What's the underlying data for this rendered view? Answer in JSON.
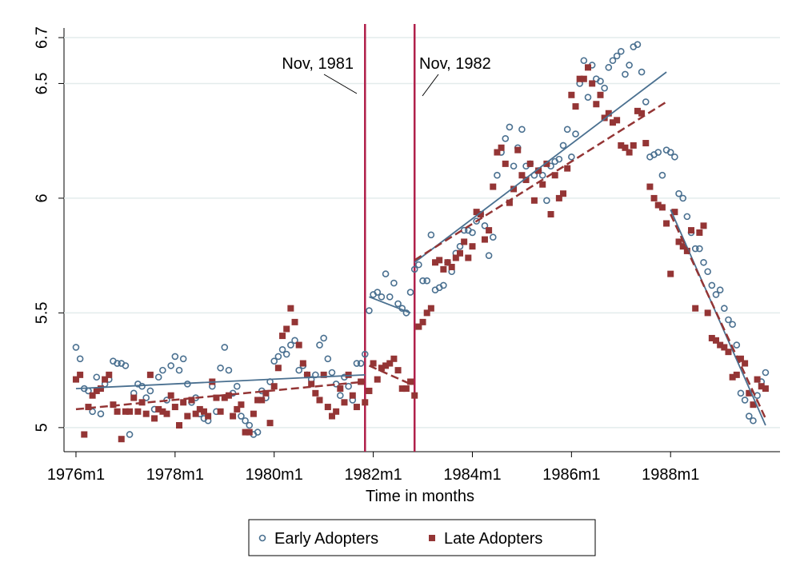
{
  "chart_data": {
    "type": "scatter",
    "xlabel": "Time in months",
    "xlim": [
      189.1,
      362.5
    ],
    "ylim": [
      4.895,
      6.742
    ],
    "xticks": [
      {
        "value": 192,
        "label": "1976m1"
      },
      {
        "value": 216,
        "label": "1978m1"
      },
      {
        "value": 240,
        "label": "1980m1"
      },
      {
        "value": 264,
        "label": "1982m1"
      },
      {
        "value": 288,
        "label": "1984m1"
      },
      {
        "value": 312,
        "label": "1986m1"
      },
      {
        "value": 336,
        "label": "1988m1"
      }
    ],
    "yticks": [
      5,
      5.5,
      6,
      6.5,
      6.7
    ],
    "grid": true,
    "x": [
      192,
      193,
      194,
      195,
      196,
      197,
      198,
      199,
      200,
      201,
      202,
      203,
      204,
      205,
      206,
      207,
      208,
      209,
      210,
      211,
      212,
      213,
      214,
      215,
      216,
      217,
      218,
      219,
      220,
      221,
      222,
      223,
      224,
      225,
      226,
      227,
      228,
      229,
      230,
      231,
      232,
      233,
      234,
      235,
      236,
      237,
      238,
      239,
      240,
      241,
      242,
      243,
      244,
      245,
      246,
      247,
      248,
      249,
      250,
      251,
      252,
      253,
      254,
      255,
      256,
      257,
      258,
      259,
      260,
      261,
      262,
      263,
      264,
      265,
      266,
      267,
      268,
      269,
      270,
      271,
      272,
      273,
      274,
      275,
      276,
      277,
      278,
      279,
      280,
      281,
      282,
      283,
      284,
      285,
      286,
      287,
      288,
      289,
      290,
      291,
      292,
      293,
      294,
      295,
      296,
      297,
      298,
      299,
      300,
      301,
      302,
      303,
      304,
      305,
      306,
      307,
      308,
      309,
      310,
      311,
      312,
      313,
      314,
      315,
      316,
      317,
      318,
      319,
      320,
      321,
      322,
      323,
      324,
      325,
      326,
      327,
      328,
      329,
      330,
      331,
      332,
      333,
      334,
      335,
      336,
      337,
      338,
      339,
      340,
      341,
      342,
      343,
      344,
      345,
      346,
      347,
      348,
      349,
      350,
      351,
      352,
      353,
      354,
      355,
      356,
      357,
      358,
      359
    ],
    "series": [
      {
        "name": "Early Adopters",
        "color": "#4a7090",
        "marker": "circle",
        "dashed": false,
        "values": [
          5.35,
          5.3,
          5.17,
          5.16,
          5.07,
          5.22,
          5.06,
          5.19,
          5.21,
          5.29,
          5.28,
          5.28,
          5.27,
          4.97,
          5.15,
          5.19,
          5.18,
          5.13,
          5.16,
          5.08,
          5.22,
          5.25,
          5.12,
          5.27,
          5.31,
          5.25,
          5.3,
          5.19,
          5.11,
          5.13,
          5.06,
          5.04,
          5.03,
          5.18,
          5.07,
          5.26,
          5.35,
          5.25,
          5.15,
          5.18,
          5.05,
          5.03,
          5.01,
          4.97,
          4.98,
          5.16,
          5.13,
          5.2,
          5.29,
          5.31,
          5.34,
          5.32,
          5.36,
          5.38,
          5.25,
          5.27,
          5.23,
          5.21,
          5.23,
          5.36,
          5.39,
          5.3,
          5.24,
          5.19,
          5.14,
          5.22,
          5.18,
          5.12,
          5.28,
          5.28,
          5.32,
          5.51,
          5.58,
          5.59,
          5.57,
          5.67,
          5.57,
          5.63,
          5.54,
          5.52,
          5.5,
          5.59,
          5.69,
          5.71,
          5.64,
          5.64,
          5.84,
          5.6,
          5.61,
          5.62,
          5.72,
          5.68,
          5.76,
          5.79,
          5.86,
          5.86,
          5.85,
          5.9,
          5.93,
          5.88,
          5.75,
          5.83,
          6.1,
          6.2,
          6.26,
          6.31,
          6.14,
          6.22,
          6.3,
          6.14,
          6.15,
          6.1,
          6.12,
          6.1,
          5.99,
          6.14,
          6.16,
          6.17,
          6.23,
          6.3,
          6.18,
          6.28,
          6.5,
          6.6,
          6.44,
          6.58,
          6.52,
          6.51,
          6.48,
          6.57,
          6.6,
          6.62,
          6.64,
          6.54,
          6.58,
          6.66,
          6.67,
          6.55,
          6.42,
          6.18,
          6.19,
          6.2,
          6.1,
          6.21,
          6.2,
          6.18,
          6.02,
          6.0,
          5.92,
          5.85,
          5.78,
          5.78,
          5.72,
          5.68,
          5.62,
          5.58,
          5.6,
          5.52,
          5.47,
          5.45,
          5.36,
          5.15,
          5.12,
          5.05,
          5.03,
          5.14,
          5.2,
          5.24
        ]
      },
      {
        "name": "Late Adopters",
        "color": "#943535",
        "marker": "square",
        "dashed": true,
        "values": [
          5.21,
          5.23,
          4.97,
          5.09,
          5.14,
          5.16,
          5.17,
          5.21,
          5.23,
          5.1,
          5.07,
          4.95,
          5.07,
          5.07,
          5.13,
          5.07,
          5.11,
          5.06,
          5.23,
          5.04,
          5.08,
          5.07,
          5.06,
          5.14,
          5.09,
          5.01,
          5.11,
          5.05,
          5.12,
          5.06,
          5.08,
          5.07,
          5.05,
          5.2,
          5.13,
          5.07,
          5.13,
          5.14,
          5.05,
          5.08,
          5.1,
          4.98,
          4.98,
          5.06,
          5.12,
          5.12,
          5.15,
          5.02,
          5.18,
          5.26,
          5.4,
          5.43,
          5.52,
          5.46,
          5.36,
          5.28,
          5.23,
          5.19,
          5.15,
          5.12,
          5.23,
          5.09,
          5.05,
          5.07,
          5.17,
          5.11,
          5.23,
          5.14,
          5.09,
          5.2,
          5.11,
          5.16,
          5.28,
          5.21,
          5.26,
          5.27,
          5.28,
          5.3,
          5.25,
          5.17,
          5.17,
          5.2,
          5.14,
          5.44,
          5.46,
          5.5,
          5.52,
          5.72,
          5.73,
          5.69,
          5.72,
          5.7,
          5.74,
          5.76,
          5.81,
          5.74,
          5.79,
          5.94,
          5.93,
          5.82,
          5.86,
          6.05,
          6.2,
          6.22,
          6.15,
          5.98,
          6.04,
          6.21,
          6.1,
          6.08,
          6.15,
          5.99,
          6.12,
          6.06,
          6.15,
          5.93,
          6.1,
          6.0,
          6.02,
          6.13,
          6.45,
          6.4,
          6.52,
          6.52,
          6.57,
          6.5,
          6.41,
          6.45,
          6.35,
          6.37,
          6.33,
          6.34,
          6.23,
          6.22,
          6.2,
          6.23,
          6.38,
          6.37,
          6.24,
          6.05,
          6.0,
          5.97,
          5.96,
          5.89,
          5.67,
          5.94,
          5.81,
          5.79,
          5.77,
          5.86,
          5.52,
          5.85,
          5.88,
          5.5,
          5.39,
          5.38,
          5.36,
          5.35,
          5.33,
          5.22,
          5.23,
          5.3,
          5.28,
          5.15,
          5.1,
          5.21,
          5.18,
          5.17
        ]
      }
    ],
    "fit_lines": [
      {
        "series": 0,
        "x": [
          192,
          262
        ],
        "y": [
          5.17,
          5.23
        ]
      },
      {
        "series": 1,
        "x": [
          192,
          262
        ],
        "y": [
          5.08,
          5.2
        ]
      },
      {
        "series": 0,
        "x": [
          263,
          273
        ],
        "y": [
          5.57,
          5.5
        ]
      },
      {
        "series": 1,
        "x": [
          263,
          273
        ],
        "y": [
          5.27,
          5.19
        ]
      },
      {
        "series": 0,
        "x": [
          274,
          335
        ],
        "y": [
          5.72,
          6.55
        ]
      },
      {
        "series": 1,
        "x": [
          274,
          335
        ],
        "y": [
          5.73,
          6.42
        ]
      },
      {
        "series": 0,
        "x": [
          336,
          359
        ],
        "y": [
          5.95,
          5.01
        ]
      },
      {
        "series": 1,
        "x": [
          336,
          359
        ],
        "y": [
          5.93,
          5.04
        ]
      }
    ],
    "vlines": [
      262,
      274
    ],
    "vline_color": "#b0204a",
    "annotations": [
      "Nov, 1981",
      "Nov, 1982"
    ]
  }
}
